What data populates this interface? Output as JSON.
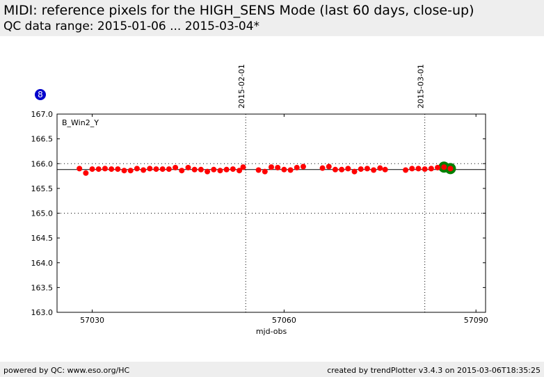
{
  "header": {
    "title": "MIDI: reference pixels for the HIGH_SENS Mode (last 60 days, close-up)",
    "subtitle": "QC data range: 2015-01-06 ... 2015-03-04*"
  },
  "badge": "8",
  "footer": {
    "left": "powered by QC: www.eso.org/HC",
    "right": "created by trendPlotter v3.4.3 on 2015-03-06T18:35:25"
  },
  "colors": {
    "point": "#ff0000",
    "recent_point": "#008000",
    "badge": "#0000cc",
    "header_bg": "#eeeeee"
  },
  "chart_data": {
    "type": "scatter",
    "series_label": "B_Win2_Y",
    "xlabel": "mjd-obs",
    "ylabel": "",
    "xlim": [
      57024.5,
      57091.5
    ],
    "ylim": [
      163.0,
      167.0
    ],
    "xticks": [
      57030,
      57060,
      57090
    ],
    "yticks": [
      163.0,
      163.5,
      164.0,
      164.5,
      165.0,
      165.5,
      166.0,
      166.5,
      167.0
    ],
    "ytick_labels": [
      "163.0",
      "163.5",
      "164.0",
      "164.5",
      "165.0",
      "165.5",
      "166.0",
      "166.5",
      "167.0"
    ],
    "reference_line": 165.88,
    "dotted_hlines": [
      166.0,
      165.0
    ],
    "date_markers": [
      {
        "x": 57054.0,
        "label": "2015-02-01"
      },
      {
        "x": 57082.0,
        "label": "2015-03-01"
      }
    ],
    "points": [
      {
        "x": 57028.0,
        "y": 165.9
      },
      {
        "x": 57029.0,
        "y": 165.81
      },
      {
        "x": 57030.0,
        "y": 165.89
      },
      {
        "x": 57031.0,
        "y": 165.89
      },
      {
        "x": 57032.0,
        "y": 165.9
      },
      {
        "x": 57033.0,
        "y": 165.89
      },
      {
        "x": 57034.0,
        "y": 165.89
      },
      {
        "x": 57035.0,
        "y": 165.86
      },
      {
        "x": 57036.0,
        "y": 165.86
      },
      {
        "x": 57037.0,
        "y": 165.9
      },
      {
        "x": 57038.0,
        "y": 165.87
      },
      {
        "x": 57039.0,
        "y": 165.9
      },
      {
        "x": 57040.0,
        "y": 165.89
      },
      {
        "x": 57041.0,
        "y": 165.89
      },
      {
        "x": 57042.0,
        "y": 165.89
      },
      {
        "x": 57043.0,
        "y": 165.92
      },
      {
        "x": 57044.0,
        "y": 165.86
      },
      {
        "x": 57045.0,
        "y": 165.92
      },
      {
        "x": 57046.0,
        "y": 165.88
      },
      {
        "x": 57047.0,
        "y": 165.88
      },
      {
        "x": 57048.0,
        "y": 165.84
      },
      {
        "x": 57049.0,
        "y": 165.88
      },
      {
        "x": 57050.0,
        "y": 165.86
      },
      {
        "x": 57051.0,
        "y": 165.88
      },
      {
        "x": 57052.0,
        "y": 165.89
      },
      {
        "x": 57053.0,
        "y": 165.86
      },
      {
        "x": 57053.6,
        "y": 165.93
      },
      {
        "x": 57056.0,
        "y": 165.87
      },
      {
        "x": 57057.0,
        "y": 165.84
      },
      {
        "x": 57058.0,
        "y": 165.93
      },
      {
        "x": 57059.0,
        "y": 165.92
      },
      {
        "x": 57060.0,
        "y": 165.88
      },
      {
        "x": 57061.0,
        "y": 165.87
      },
      {
        "x": 57062.0,
        "y": 165.92
      },
      {
        "x": 57063.0,
        "y": 165.94
      },
      {
        "x": 57066.0,
        "y": 165.91
      },
      {
        "x": 57067.0,
        "y": 165.94
      },
      {
        "x": 57068.0,
        "y": 165.88
      },
      {
        "x": 57069.0,
        "y": 165.88
      },
      {
        "x": 57070.0,
        "y": 165.9
      },
      {
        "x": 57071.0,
        "y": 165.84
      },
      {
        "x": 57072.0,
        "y": 165.89
      },
      {
        "x": 57073.0,
        "y": 165.9
      },
      {
        "x": 57074.0,
        "y": 165.87
      },
      {
        "x": 57075.0,
        "y": 165.91
      },
      {
        "x": 57075.8,
        "y": 165.88
      },
      {
        "x": 57079.0,
        "y": 165.87
      },
      {
        "x": 57080.0,
        "y": 165.9
      },
      {
        "x": 57081.0,
        "y": 165.9
      },
      {
        "x": 57082.0,
        "y": 165.89
      },
      {
        "x": 57083.0,
        "y": 165.9
      },
      {
        "x": 57084.0,
        "y": 165.92
      },
      {
        "x": 57085.0,
        "y": 165.93
      },
      {
        "x": 57086.0,
        "y": 165.9
      }
    ],
    "recent_points": [
      {
        "x": 57085.0,
        "y": 165.93
      },
      {
        "x": 57086.0,
        "y": 165.9
      }
    ]
  }
}
